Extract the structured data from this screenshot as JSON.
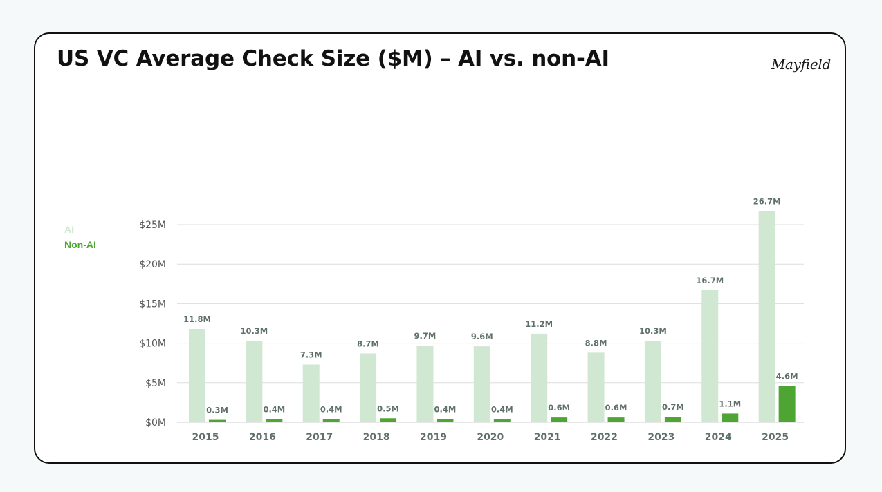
{
  "header": {
    "title": "US VC Average Check Size ($M) – AI vs. non-AI",
    "logo_text": "Mayfield"
  },
  "colors": {
    "ai": "#d0e7d1",
    "non_ai": "#4ea534",
    "grid": "#dddddd"
  },
  "chart_data": {
    "type": "bar",
    "title": "US VC Average Check Size ($M) – AI vs. non-AI",
    "xlabel": "",
    "ylabel": "",
    "categories": [
      "2015",
      "2016",
      "2017",
      "2018",
      "2019",
      "2020",
      "2021",
      "2022",
      "2023",
      "2024",
      "2025"
    ],
    "series": [
      {
        "name": "AI",
        "values": [
          11.8,
          10.3,
          7.3,
          8.7,
          9.7,
          9.6,
          11.2,
          8.8,
          10.3,
          16.7,
          26.7
        ],
        "labels": [
          "11.8M",
          "10.3M",
          "7.3M",
          "8.7M",
          "9.7M",
          "9.6M",
          "11.2M",
          "8.8M",
          "10.3M",
          "16.7M",
          "26.7M"
        ]
      },
      {
        "name": "Non-AI",
        "values": [
          0.3,
          0.4,
          0.4,
          0.5,
          0.4,
          0.4,
          0.6,
          0.6,
          0.7,
          1.1,
          4.6
        ],
        "labels": [
          "0.3M",
          "0.4M",
          "0.4M",
          "0.5M",
          "0.4M",
          "0.4M",
          "0.6M",
          "0.6M",
          "0.7M",
          "1.1M",
          "4.6M"
        ]
      }
    ],
    "ylim": [
      0,
      25
    ],
    "yticks": [
      0,
      5,
      10,
      15,
      20,
      25
    ],
    "ytick_labels": [
      "$0M",
      "$5M",
      "$10M",
      "$15M",
      "$20M",
      "$25M"
    ],
    "grid": true,
    "legend_position": "left"
  }
}
